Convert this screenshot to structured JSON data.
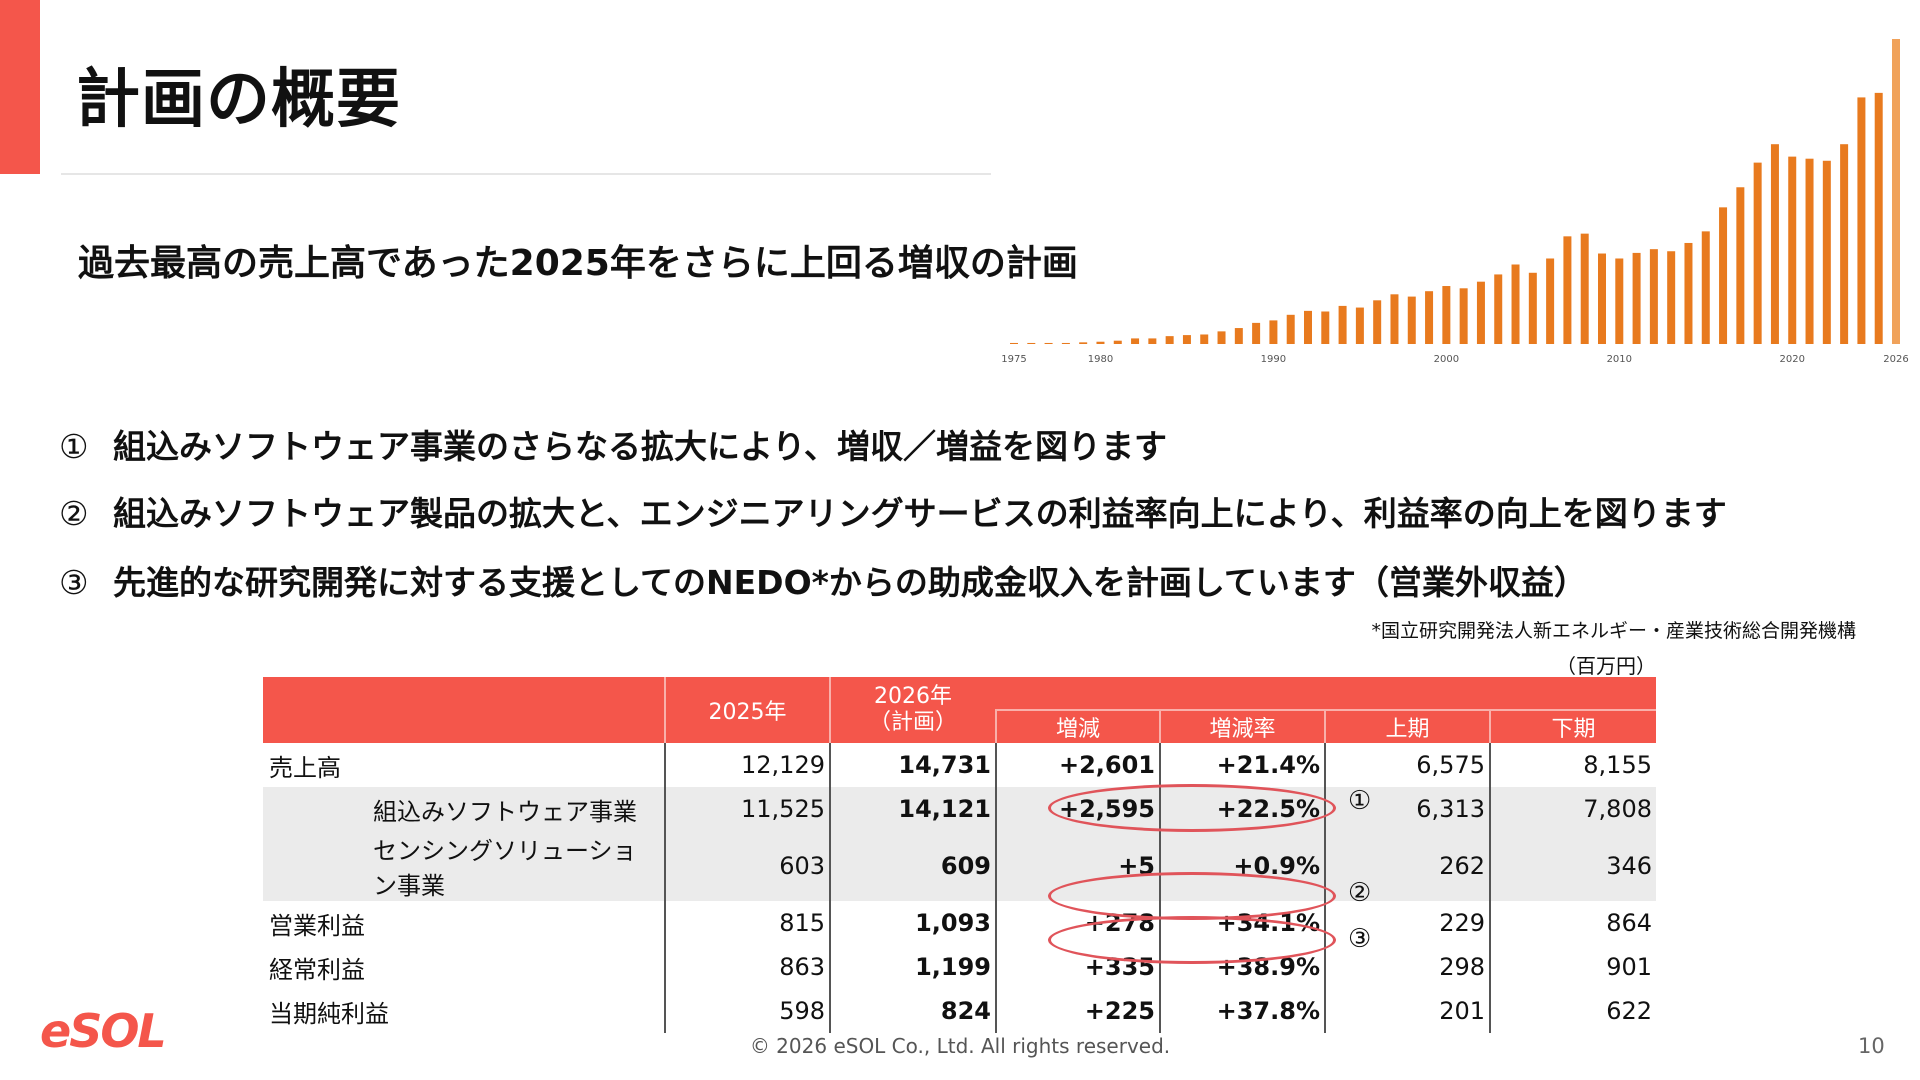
{
  "header": {
    "title": "計画の概要",
    "subtitle": "過去最高の売上高であった2025年をさらに上回る増収の計画"
  },
  "bullets": [
    {
      "num": "①",
      "text": "組込みソフトウェア事業のさらなる拡大により、増収／増益を図ります"
    },
    {
      "num": "②",
      "text": "組込みソフトウェア製品の拡大と、エンジニアリングサービスの利益率向上により、利益率の向上を図ります"
    },
    {
      "num": "③",
      "text": "先進的な研究開発に対する支援としてのNEDO*からの助成金収入を計画しています（営業外収益）"
    }
  ],
  "footnote": "*国立研究開発法人新エネルギー・産業技術総合開発機構",
  "unit": "（百万円）",
  "table": {
    "headers": {
      "y2025": "2025年",
      "y2026": "2026年\n（計画）",
      "change": "増減",
      "rate": "増減率",
      "h1": "上期",
      "h2": "下期"
    },
    "rows": [
      {
        "label": "売上高",
        "v2025": "12,129",
        "v2026": "14,731",
        "change": "+2,601",
        "rate": "+21.4%",
        "h1": "6,575",
        "h2": "8,155"
      },
      {
        "label": "組込みソフトウェア事業",
        "v2025": "11,525",
        "v2026": "14,121",
        "change": "+2,595",
        "rate": "+22.5%",
        "h1": "6,313",
        "h2": "7,808",
        "mark": "①"
      },
      {
        "label": "センシングソリューション事業",
        "v2025": "603",
        "v2026": "609",
        "change": "+5",
        "rate": "+0.9%",
        "h1": "262",
        "h2": "346"
      },
      {
        "label": "営業利益",
        "v2025": "815",
        "v2026": "1,093",
        "change": "+278",
        "rate": "+34.1%",
        "h1": "229",
        "h2": "864",
        "mark": "②"
      },
      {
        "label": "経常利益",
        "v2025": "863",
        "v2026": "1,199",
        "change": "+335",
        "rate": "+38.9%",
        "h1": "298",
        "h2": "901",
        "mark": "③"
      },
      {
        "label": "当期純利益",
        "v2025": "598",
        "v2026": "824",
        "change": "+225",
        "rate": "+37.8%",
        "h1": "201",
        "h2": "622"
      }
    ]
  },
  "footer": {
    "copyright": "© 2026 eSOL Co., Ltd. All rights reserved.",
    "page": "10",
    "logo": "eSOL"
  },
  "colors": {
    "accent": "#F4564B",
    "bar": "#E87A1E",
    "bar_plan": "#F0A25A",
    "highlight": "#E0545A"
  },
  "chart_data": {
    "type": "bar",
    "xlabel": "",
    "ylabel": "",
    "tick_labels": [
      "1975",
      "1980",
      "1990",
      "2000",
      "2010",
      "2020",
      "2026"
    ],
    "categories": [
      1975,
      1976,
      1977,
      1978,
      1979,
      1980,
      1981,
      1982,
      1983,
      1984,
      1985,
      1986,
      1987,
      1988,
      1989,
      1990,
      1991,
      1992,
      1993,
      1994,
      1995,
      1996,
      1997,
      1998,
      1999,
      2000,
      2001,
      2002,
      2003,
      2004,
      2005,
      2006,
      2007,
      2008,
      2009,
      2010,
      2011,
      2012,
      2013,
      2014,
      2015,
      2016,
      2017,
      2018,
      2019,
      2020,
      2021,
      2022,
      2023,
      2024,
      2025,
      2026
    ],
    "values": [
      50,
      50,
      50,
      50,
      80,
      110,
      160,
      270,
      270,
      380,
      430,
      460,
      610,
      770,
      1020,
      1140,
      1410,
      1600,
      1570,
      1840,
      1760,
      2110,
      2400,
      2290,
      2550,
      2800,
      2690,
      3010,
      3360,
      3840,
      3440,
      4130,
      5200,
      5330,
      4370,
      4130,
      4400,
      4580,
      4480,
      4880,
      5440,
      6600,
      7570,
      8760,
      9650,
      9050,
      8950,
      8850,
      9650,
      11910,
      12129,
      14731
    ],
    "grid": false,
    "legend": "none"
  }
}
